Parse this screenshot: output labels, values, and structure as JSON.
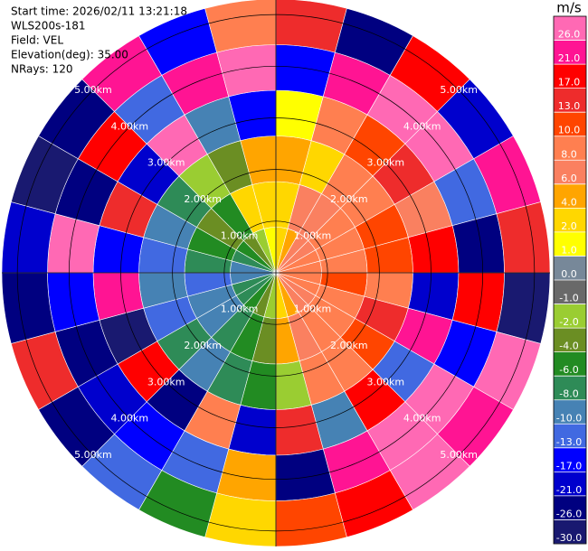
{
  "chart_data": {
    "type": "ppi",
    "header": [
      "Start time: 2026/02/11 13:21:18",
      "WLS200s-181",
      "Field: VEL",
      "Elevation(deg): 35.00",
      "NRays: 120"
    ],
    "colorbar_label": "m/s",
    "colorbar_ticks": [
      {
        "value": 26,
        "label": "26.0"
      },
      {
        "value": 21,
        "label": "21.0"
      },
      {
        "value": 17,
        "label": "17.0"
      },
      {
        "value": 13,
        "label": "13.0"
      },
      {
        "value": 10,
        "label": "10.0"
      },
      {
        "value": 8,
        "label": "8.0"
      },
      {
        "value": 6,
        "label": "6.0"
      },
      {
        "value": 4,
        "label": "4.0"
      },
      {
        "value": 2,
        "label": "2.0"
      },
      {
        "value": 1,
        "label": "1.0"
      },
      {
        "value": 0,
        "label": "0.0"
      },
      {
        "value": -1,
        "label": "-1.0"
      },
      {
        "value": -2,
        "label": "-2.0"
      },
      {
        "value": -4,
        "label": "-4.0"
      },
      {
        "value": -6,
        "label": "-6.0"
      },
      {
        "value": -8,
        "label": "-8.0"
      },
      {
        "value": -10,
        "label": "-10.0"
      },
      {
        "value": -13,
        "label": "-13.0"
      },
      {
        "value": -17,
        "label": "-17.0"
      },
      {
        "value": -21,
        "label": "-21.0"
      },
      {
        "value": -26,
        "label": "-26.0"
      },
      {
        "value": -30,
        "label": "-30.0"
      }
    ],
    "colorbar_colors": [
      "#ff69b4",
      "#ff1493",
      "#ff0000",
      "#ee2c2c",
      "#ff4500",
      "#ff7f50",
      "#fa8060",
      "#ffa500",
      "#ffd700",
      "#ffff00",
      "#778899",
      "#696969",
      "#9acd32",
      "#6b8e23",
      "#228b22",
      "#2e8b57",
      "#4682b4",
      "#4169e1",
      "#0000ff",
      "#0000cd",
      "#000080",
      "#191970"
    ],
    "rlim": [
      0,
      5.3
    ],
    "range_rings": [
      {
        "value": 1,
        "label": "1.00km"
      },
      {
        "value": 2,
        "label": "2.00km"
      },
      {
        "value": 3,
        "label": "3.00km"
      },
      {
        "value": 4,
        "label": "4.00km"
      },
      {
        "value": 5,
        "label": "5.00km"
      }
    ],
    "velocity": [
      [
        2,
        3,
        4,
        1,
        -17,
        13
      ],
      [
        4,
        6,
        3,
        8,
        21,
        -26
      ],
      [
        6,
        7,
        8,
        10,
        26,
        17
      ],
      [
        7,
        8,
        9,
        13,
        26,
        -21
      ],
      [
        8,
        9,
        10,
        6,
        -13,
        21
      ],
      [
        8,
        9,
        10,
        17,
        -26,
        13
      ],
      [
        9,
        10,
        8,
        -21,
        17,
        -30
      ],
      [
        8,
        9,
        13,
        21,
        -17,
        26
      ],
      [
        7,
        9,
        10,
        -13,
        26,
        21
      ],
      [
        6,
        8,
        9,
        17,
        26,
        26
      ],
      [
        4,
        6,
        8,
        -10,
        21,
        17
      ],
      [
        2,
        4,
        -2,
        13,
        -26,
        10
      ],
      [
        -2,
        -4,
        -6,
        -21,
        4,
        2
      ],
      [
        -4,
        -6,
        -8,
        8,
        -13,
        -6
      ],
      [
        -6,
        -8,
        -10,
        -26,
        -17,
        -13
      ],
      [
        -8,
        -10,
        -8,
        17,
        -21,
        -26
      ],
      [
        -8,
        -10,
        -13,
        -30,
        -26,
        13
      ],
      [
        -10,
        -13,
        -10,
        21,
        -17,
        -26
      ],
      [
        -10,
        -8,
        -13,
        -17,
        26,
        -21
      ],
      [
        -8,
        -6,
        -10,
        13,
        -26,
        -30
      ],
      [
        -6,
        -4,
        -8,
        -21,
        17,
        -26
      ],
      [
        -4,
        -6,
        -2,
        26,
        -13,
        21
      ],
      [
        -2,
        2,
        -4,
        -10,
        21,
        -17
      ],
      [
        1,
        2,
        4,
        -17,
        26,
        8
      ]
    ]
  }
}
